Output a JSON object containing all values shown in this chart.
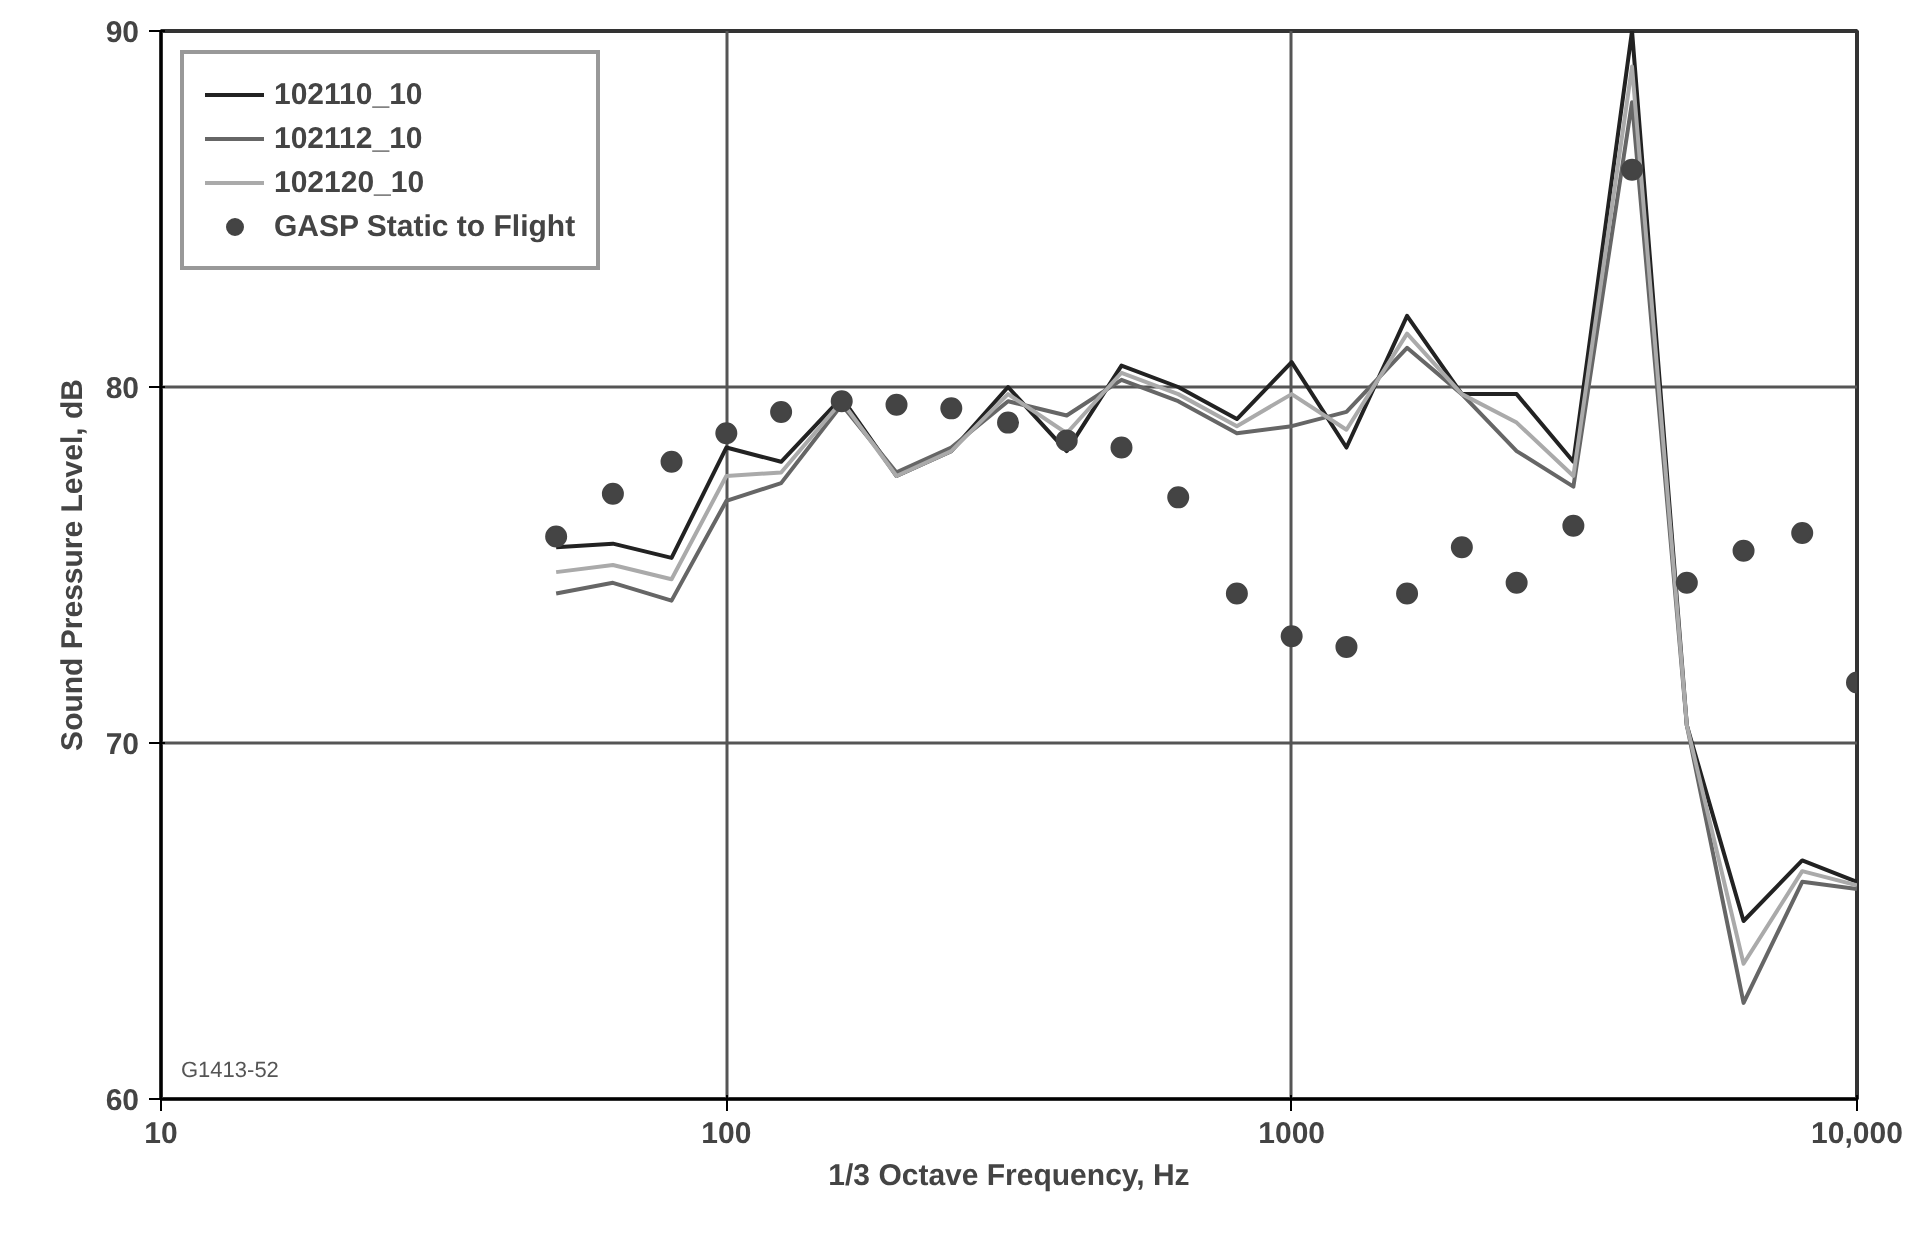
{
  "chart_data": {
    "type": "line",
    "xlabel": "1/3 Octave Frequency, Hz",
    "ylabel": "Sound Pressure Level, dB",
    "x": [
      50,
      63,
      80,
      100,
      125,
      160,
      200,
      250,
      315,
      400,
      500,
      630,
      800,
      1000,
      1250,
      1600,
      2000,
      2500,
      3150,
      4000,
      5000,
      6300,
      8000,
      10000
    ],
    "log": "x",
    "xlim": [
      10,
      10000
    ],
    "ylim": [
      60,
      90
    ],
    "xticks": [
      10,
      100,
      1000,
      {
        "value": 10000,
        "label": "10,000"
      }
    ],
    "yticks": [
      60,
      70,
      80,
      90
    ],
    "grid": true,
    "legend": "top left",
    "series": [
      {
        "name": "102110_10",
        "color": "#222222",
        "marker": "none",
        "values": [
          75.5,
          75.6,
          75.2,
          78.3,
          77.9,
          79.7,
          77.5,
          78.2,
          80.0,
          78.2,
          80.6,
          80.0,
          79.1,
          80.7,
          78.3,
          82.0,
          79.8,
          79.8,
          77.9,
          90.0,
          70.5,
          65.0,
          66.7,
          66.1
        ]
      },
      {
        "name": "102112_10",
        "color": "#666666",
        "marker": "none",
        "values": [
          74.2,
          74.5,
          74.0,
          76.8,
          77.3,
          79.5,
          77.6,
          78.3,
          79.6,
          79.2,
          80.2,
          79.6,
          78.7,
          78.9,
          79.3,
          81.1,
          79.8,
          78.2,
          77.2,
          88.0,
          70.5,
          62.7,
          66.1,
          65.9
        ]
      },
      {
        "name": "102120_10",
        "color": "#aaaaaa",
        "marker": "none",
        "values": [
          74.8,
          75.0,
          74.6,
          77.5,
          77.6,
          79.6,
          77.5,
          78.2,
          79.8,
          78.7,
          80.4,
          79.8,
          78.9,
          79.8,
          78.8,
          81.5,
          79.8,
          79.0,
          77.5,
          89.0,
          70.5,
          63.8,
          66.4,
          66.0
        ]
      },
      {
        "name": "GASP Static to Flight",
        "type": "scatter",
        "color": "#444444",
        "marker": "circle",
        "values": [
          75.8,
          77.0,
          77.9,
          78.7,
          79.3,
          79.6,
          79.5,
          79.4,
          79.0,
          78.5,
          78.3,
          76.9,
          74.2,
          73.0,
          72.7,
          74.2,
          75.5,
          74.5,
          76.1,
          86.1,
          74.5,
          75.4,
          75.9,
          71.7
        ]
      }
    ],
    "annotations": [
      "G1413-52"
    ]
  }
}
